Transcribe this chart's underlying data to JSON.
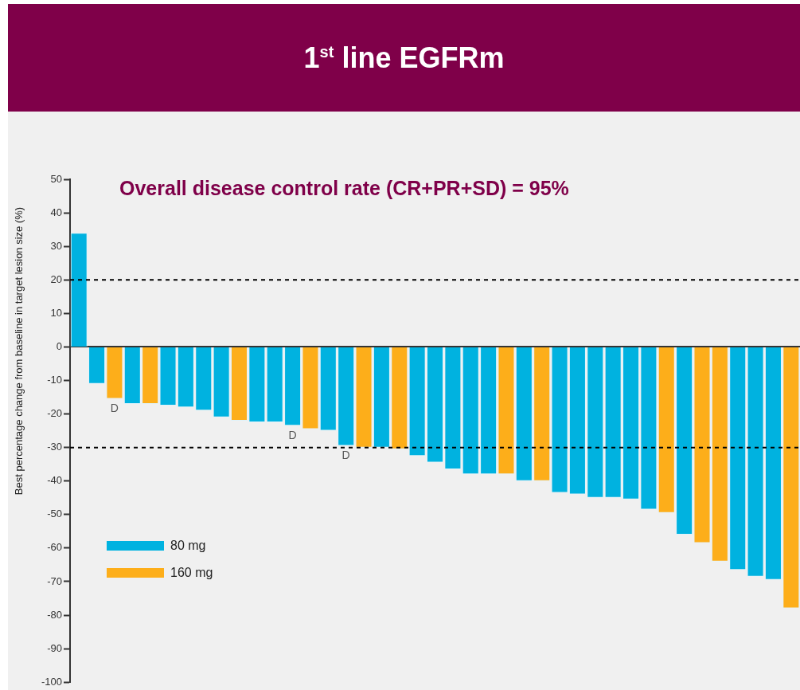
{
  "chart_data": {
    "type": "bar",
    "title": "1$^{st}$ line EGFRm",
    "subtitle": "Overall disease control rate (CR+PR+SD) = 95%",
    "ylabel": "Best percentage change from baseline in target lesion size (%)",
    "categories": [
      null,
      null,
      null,
      null,
      null,
      null,
      null,
      null,
      null,
      null,
      null,
      null,
      null,
      null,
      null,
      null,
      null,
      null,
      null,
      null,
      null,
      null,
      null,
      null,
      null,
      null,
      null,
      null,
      null,
      null,
      null,
      null,
      null,
      null,
      null,
      null,
      null,
      null,
      null,
      null,
      null
    ],
    "stacked": true,
    "series": [
      {
        "name": "80 mg",
        "color": "#00b2e0",
        "values": [
          34,
          -11,
          null,
          -17,
          null,
          -17.5,
          -18,
          -19,
          -21,
          null,
          -22.5,
          -22.5,
          -23.5,
          null,
          -25,
          -29.5,
          null,
          -30,
          null,
          -32.5,
          -34.5,
          -36.5,
          -38,
          -38,
          null,
          -40,
          null,
          -43.5,
          -44,
          -45,
          -45,
          -45.5,
          -48.5,
          null,
          -56,
          null,
          null,
          -66.5,
          -68.5,
          -69.5,
          null
        ],
        "value_labels": [
          null,
          null,
          null,
          null,
          null,
          null,
          null,
          null,
          null,
          null,
          null,
          null,
          "D",
          null,
          null,
          "D",
          null,
          null,
          null,
          null,
          null,
          null,
          null,
          null,
          null,
          null,
          null,
          null,
          null,
          null,
          null,
          null,
          null,
          null,
          null,
          null,
          null,
          null,
          null,
          null,
          null
        ]
      },
      {
        "name": "160 mg",
        "color": "#fdae1a",
        "values": [
          null,
          null,
          -15.5,
          null,
          -17,
          null,
          null,
          null,
          null,
          -22,
          null,
          null,
          null,
          -24.5,
          null,
          null,
          -30,
          null,
          -30.5,
          null,
          null,
          null,
          null,
          null,
          -38,
          null,
          -40,
          null,
          null,
          null,
          null,
          null,
          null,
          -49.5,
          null,
          -58.5,
          -64,
          null,
          null,
          null,
          -78
        ],
        "value_labels": [
          null,
          null,
          "D",
          null,
          null,
          null,
          null,
          null,
          null,
          null,
          null,
          null,
          null,
          null,
          null,
          null,
          null,
          null,
          null,
          null,
          null,
          null,
          null,
          null,
          null,
          null,
          null,
          null,
          null,
          null,
          null,
          null,
          null,
          null,
          null,
          null,
          null,
          null,
          null,
          null,
          null
        ]
      }
    ],
    "ylim": [
      -100,
      50
    ],
    "yticks": [
      50,
      40,
      30,
      20,
      10,
      0,
      -10,
      -20,
      -30,
      -40,
      -50,
      -60,
      -70,
      -80,
      -90,
      -100
    ],
    "ref_lines": [
      {
        "axis": "y",
        "value": 20,
        "line_style": "dashed",
        "color": "#000000"
      },
      {
        "axis": "y",
        "value": -30,
        "line_style": "dashed",
        "color": "#000000"
      }
    ],
    "legend": "bottom left",
    "grid": false
  }
}
